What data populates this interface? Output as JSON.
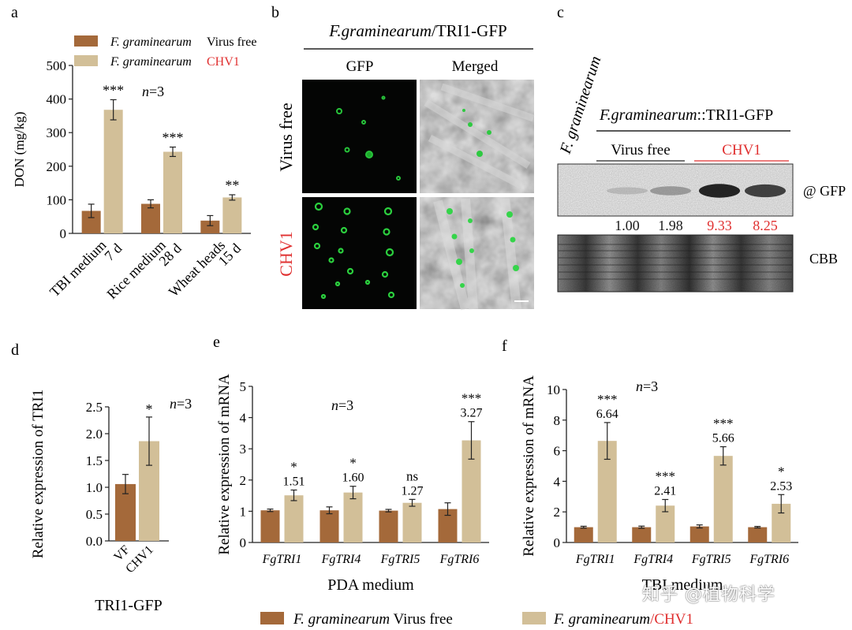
{
  "colors": {
    "virus_free": "#a4693a",
    "chv1": "#d2bf98",
    "red": "#e03030",
    "axis": "#222222"
  },
  "panel_labels": {
    "a": "a",
    "b": "b",
    "c": "c",
    "d": "d",
    "e": "e",
    "f": "f"
  },
  "panel_a": {
    "legend": [
      {
        "italic": "F. graminearum",
        "text": "Virus free",
        "color_key": "virus_free"
      },
      {
        "italic": "F. graminearum",
        "text": "CHV1",
        "color_key": "chv1"
      }
    ],
    "n_label": {
      "prefix": "n",
      "suffix": "=3"
    }
  },
  "panel_b": {
    "title_italic": "F.graminearum",
    "title_rest": "/TRI1-GFP",
    "col_headers": [
      "GFP",
      "Merged"
    ],
    "row_labels": [
      "Virus free",
      "CHV1"
    ]
  },
  "panel_c": {
    "lane1_label": "F. graminearum",
    "group_italic": "F.graminearum",
    "group_rest": "::TRI1-GFP",
    "sub_vf": "Virus free",
    "sub_chv1": "CHV1",
    "quant": [
      "1.00",
      "1.98",
      "9.33",
      "8.25"
    ],
    "quant_colors": [
      "#1a1a1a",
      "#1a1a1a",
      "#e03030",
      "#e03030"
    ],
    "blot_labels": [
      "@ GFP",
      "CBB"
    ],
    "band_intensity": [
      0.0,
      0.25,
      0.45,
      0.95,
      0.85
    ]
  },
  "panel_d": {
    "n_label": {
      "prefix": "n",
      "suffix": "=3"
    },
    "footer": "TRI1-GFP"
  },
  "panel_e": {
    "n_label": {
      "prefix": "n",
      "suffix": "=3"
    }
  },
  "panel_f": {
    "n_label": {
      "prefix": "n",
      "suffix": "=3"
    }
  },
  "bottom_legend": [
    {
      "italic": "F. graminearum",
      "text": " Virus free",
      "color_key": "virus_free"
    },
    {
      "italic": "F. graminearum",
      "text": "/CHV1",
      "color_key": "chv1"
    }
  ],
  "watermark": "知乎 @植物科学",
  "chart_data": [
    {
      "id": "a",
      "type": "bar",
      "ylabel": "DON (mg/kg)",
      "ylim": [
        0,
        500
      ],
      "yticks": [
        0,
        100,
        200,
        300,
        400,
        500
      ],
      "categories": [
        [
          "TBI medium",
          "7 d"
        ],
        [
          "Rice medium",
          "28 d"
        ],
        [
          "Wheat heads",
          "15 d"
        ]
      ],
      "series": [
        {
          "name": "Virus free",
          "values": [
            67,
            88,
            38
          ],
          "errors": [
            20,
            12,
            15
          ]
        },
        {
          "name": "CHV1",
          "values": [
            368,
            243,
            107
          ],
          "errors": [
            30,
            14,
            8
          ],
          "sig": [
            "***",
            "***",
            "**"
          ]
        }
      ]
    },
    {
      "id": "d",
      "type": "bar",
      "ylabel": "Relative expression of  TRI1",
      "ylim": [
        0,
        2.5
      ],
      "yticks": [
        "0.0",
        "0.5",
        "1.0",
        "1.5",
        "2.0",
        "2.5"
      ],
      "categories": [
        "VF",
        "CHV1"
      ],
      "values": [
        1.06,
        1.86
      ],
      "errors": [
        0.18,
        0.45
      ],
      "sig": [
        "",
        "*"
      ]
    },
    {
      "id": "e",
      "type": "bar",
      "ylabel": "Relative expression of mRNA",
      "xlabel": "PDA medium",
      "ylim": [
        0,
        5
      ],
      "yticks": [
        0,
        1,
        2,
        3,
        4,
        5
      ],
      "categories": [
        "FgTRI1",
        "FgTRI4",
        "FgTRI5",
        "FgTRI6"
      ],
      "series": [
        {
          "name": "Virus free",
          "values": [
            1.03,
            1.03,
            1.02,
            1.07
          ],
          "errors": [
            0.04,
            0.11,
            0.04,
            0.2
          ]
        },
        {
          "name": "CHV1",
          "values": [
            1.51,
            1.6,
            1.27,
            3.27
          ],
          "errors": [
            0.17,
            0.2,
            0.11,
            0.6
          ],
          "value_labels": [
            "1.51",
            "1.60",
            "1.27",
            "3.27"
          ],
          "sig": [
            "*",
            "*",
            "ns",
            "***"
          ]
        }
      ]
    },
    {
      "id": "f",
      "type": "bar",
      "ylabel": "Relative expression of mRNA",
      "xlabel": "TBI medium",
      "ylim": [
        0,
        10
      ],
      "yticks": [
        0,
        2,
        4,
        6,
        8,
        10
      ],
      "categories": [
        "FgTRI1",
        "FgTRI4",
        "FgTRI5",
        "FgTRI6"
      ],
      "series": [
        {
          "name": "Virus free",
          "values": [
            1.0,
            1.0,
            1.05,
            1.0
          ],
          "errors": [
            0.06,
            0.07,
            0.1,
            0.05
          ]
        },
        {
          "name": "CHV1",
          "values": [
            6.64,
            2.41,
            5.66,
            2.53
          ],
          "errors": [
            1.2,
            0.4,
            0.6,
            0.6
          ],
          "value_labels": [
            "6.64",
            "2.41",
            "5.66",
            "2.53"
          ],
          "sig": [
            "***",
            "***",
            "***",
            "*"
          ]
        }
      ]
    }
  ]
}
